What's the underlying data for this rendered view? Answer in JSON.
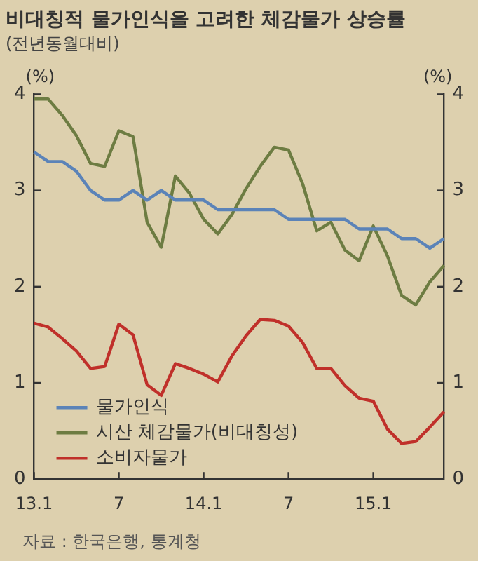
{
  "chart_data": {
    "type": "line",
    "title": "비대칭적 물가인식을 고려한 체감물가 상승률",
    "subtitle": "(전년동월대비)",
    "ylabel": "(%)",
    "y2label": "(%)",
    "categories": [
      "13.1",
      null,
      null,
      null,
      null,
      null,
      "7",
      null,
      null,
      null,
      null,
      null,
      "14.1",
      null,
      null,
      null,
      null,
      null,
      "7",
      null,
      null,
      null,
      null,
      null,
      "15.1",
      null,
      null,
      null,
      null,
      null
    ],
    "series": [
      {
        "name": "물가인식",
        "color": "#5b83b8",
        "values": [
          3.4,
          3.3,
          3.3,
          3.2,
          3.0,
          2.9,
          2.9,
          3.0,
          2.9,
          3.0,
          2.9,
          2.9,
          2.9,
          2.8,
          2.8,
          2.8,
          2.8,
          2.8,
          2.7,
          2.7,
          2.7,
          2.7,
          2.7,
          2.6,
          2.6,
          2.6,
          2.5,
          2.5,
          2.4,
          2.5
        ]
      },
      {
        "name": "시산 체감물가(비대칭성)",
        "color": "#6d7c42",
        "values": [
          3.95,
          3.95,
          3.78,
          3.57,
          3.28,
          3.25,
          3.62,
          3.56,
          2.67,
          2.41,
          3.15,
          2.97,
          2.7,
          2.55,
          2.75,
          3.02,
          3.25,
          3.45,
          3.42,
          3.07,
          2.58,
          2.67,
          2.38,
          2.27,
          2.63,
          2.32,
          1.91,
          1.81,
          2.05,
          2.22
        ]
      },
      {
        "name": "소비자물가",
        "color": "#c0302a",
        "values": [
          1.62,
          1.58,
          1.46,
          1.33,
          1.15,
          1.17,
          1.61,
          1.5,
          0.98,
          0.87,
          1.2,
          1.15,
          1.09,
          1.01,
          1.28,
          1.49,
          1.66,
          1.65,
          1.59,
          1.42,
          1.15,
          1.15,
          0.97,
          0.84,
          0.81,
          0.52,
          0.37,
          0.39,
          0.54,
          0.7
        ]
      }
    ],
    "ylim": [
      0,
      4
    ],
    "yticks": [
      0,
      1,
      2,
      3,
      4
    ],
    "y2lim": [
      0,
      4
    ],
    "y2ticks": [
      0,
      1,
      2,
      3,
      4
    ],
    "grid": false,
    "legend": "bottom left",
    "annotations": [
      "자료 : 한국은행, 통계청"
    ]
  }
}
